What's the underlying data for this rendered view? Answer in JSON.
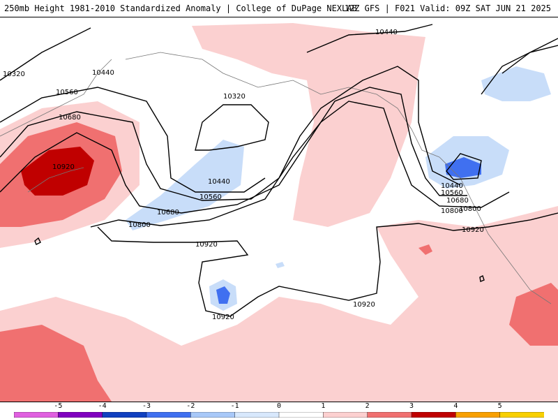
{
  "header": {
    "title": "250mb Height 1981-2010 Standardized Anomaly | College of DuPage NEXLAB",
    "valid": "12Z GFS | F021 Valid: 09Z SAT JUN 21 2025"
  },
  "contours": {
    "labels": [
      "10320",
      "10440",
      "10560",
      "10680",
      "10800",
      "10920",
      "10320",
      "10440",
      "10560",
      "10680",
      "10800",
      "10920",
      "10440",
      "10440",
      "10560",
      "10680",
      "10800",
      "10920",
      "10920",
      "10920"
    ]
  },
  "colorbar": {
    "ticks": [
      "-5",
      "-4",
      "-3",
      "-2",
      "-1",
      "0",
      "1",
      "2",
      "3",
      "4",
      "5"
    ],
    "colors": [
      "#e060e0",
      "#8000c0",
      "#1040c0",
      "#4070f0",
      "#a8c8f8",
      "#d8e8fc",
      "#ffffff",
      "#fcd0d0",
      "#f07070",
      "#c00000",
      "#f8a000",
      "#f8d000"
    ]
  }
}
